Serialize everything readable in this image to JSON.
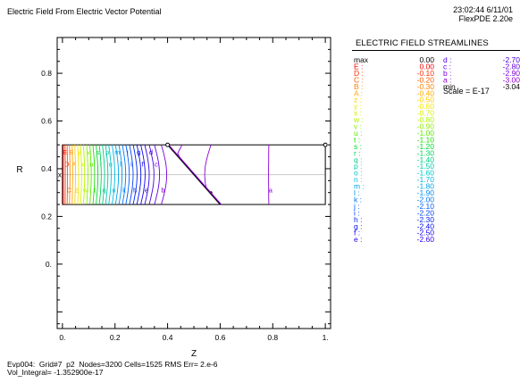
{
  "header": {
    "title": "Electric Field From Electric Vector Potential",
    "timestamp": "23:02:44 6/11/01",
    "version": "FlexPDE 2.20e"
  },
  "legend": {
    "title": "ELECTRIC FIELD STREAMLINES",
    "col1": [
      {
        "key": "max",
        "value": "0.00",
        "color": "#000000"
      },
      {
        "key": "E :",
        "value": "0.00",
        "color": "#ff0000"
      },
      {
        "key": "D :",
        "value": "-0.10",
        "color": "#ff2e00"
      },
      {
        "key": "C :",
        "value": "-0.20",
        "color": "#ff5a00"
      },
      {
        "key": "B :",
        "value": "-0.30",
        "color": "#ff8300"
      },
      {
        "key": "A :",
        "value": "-0.40",
        "color": "#ffaa00"
      },
      {
        "key": "z :",
        "value": "-0.50",
        "color": "#ffcd00"
      },
      {
        "key": "y :",
        "value": "-0.60",
        "color": "#f4e800"
      },
      {
        "key": "x :",
        "value": "-0.70",
        "color": "#d6f200"
      },
      {
        "key": "w :",
        "value": "-0.80",
        "color": "#b4f500"
      },
      {
        "key": "v :",
        "value": "-0.90",
        "color": "#8cf000"
      },
      {
        "key": "u :",
        "value": "-1.00",
        "color": "#5ae800"
      },
      {
        "key": "t :",
        "value": "-1.10",
        "color": "#1ee000"
      },
      {
        "key": "s :",
        "value": "-1.20",
        "color": "#00d82a"
      },
      {
        "key": "r :",
        "value": "-1.30",
        "color": "#00d25a"
      },
      {
        "key": "q :",
        "value": "-1.40",
        "color": "#00cc88"
      },
      {
        "key": "p :",
        "value": "-1.50",
        "color": "#00c8ae"
      },
      {
        "key": "o :",
        "value": "-1.60",
        "color": "#00c4cc"
      },
      {
        "key": "n :",
        "value": "-1.70",
        "color": "#00b8e0"
      },
      {
        "key": "m :",
        "value": "-1.80",
        "color": "#00a6ec"
      },
      {
        "key": "l :",
        "value": "-1.90",
        "color": "#0090f4"
      },
      {
        "key": "k :",
        "value": "-2.00",
        "color": "#0078f8"
      },
      {
        "key": "j :",
        "value": "-2.10",
        "color": "#005ef8"
      },
      {
        "key": "i :",
        "value": "-2.20",
        "color": "#0042f8"
      },
      {
        "key": "h :",
        "value": "-2.30",
        "color": "#0026f4"
      },
      {
        "key": "g :",
        "value": "-2.40",
        "color": "#000cf0"
      },
      {
        "key": "f :",
        "value": "-2.50",
        "color": "#1400ec"
      },
      {
        "key": "e :",
        "value": "-2.60",
        "color": "#2e00e8"
      }
    ],
    "col2": [
      {
        "key": "d :",
        "value": "-2.70",
        "color": "#4800e4"
      },
      {
        "key": "c :",
        "value": "-2.80",
        "color": "#6200e0"
      },
      {
        "key": "b :",
        "value": "-2.90",
        "color": "#7800dc"
      },
      {
        "key": "a :",
        "value": "-3.00",
        "color": "#8c00d8"
      },
      {
        "key": "min",
        "value": "-3.04",
        "color": "#000000"
      }
    ],
    "scale": "Scale = E-17"
  },
  "footer": {
    "line1": "Evp004:  Grid#7  p2  Nodes=3200 Cells=1525 RMS Err= 2.e-6",
    "line2": "Vol_Integral= -1.352900e-17"
  },
  "chart_data": {
    "type": "contour",
    "title": "ELECTRIC FIELD STREAMLINES",
    "xlabel": "Z",
    "ylabel": "R",
    "xlim": [
      -0.02,
      1.02
    ],
    "ylim": [
      -0.27,
      0.95
    ],
    "x_ticks": [
      "0.",
      "0.2",
      "0.4",
      "0.6",
      "0.8",
      "1."
    ],
    "x_tick_values": [
      0,
      0.2,
      0.4,
      0.6,
      0.8,
      1.0
    ],
    "y_ticks": [
      "0.",
      "0.2",
      "0.4",
      "0.6",
      "0.8"
    ],
    "y_tick_values": [
      0,
      0.2,
      0.4,
      0.6,
      0.8
    ],
    "regions": {
      "rectangle": {
        "z": [
          0,
          1.0
        ],
        "r": [
          0.25,
          0.5
        ]
      },
      "wedge": {
        "z_top": 0.4,
        "z_bottom": 0.6
      },
      "centerline_r": 0.375
    },
    "streamlines": [
      {
        "label": "E",
        "z": 0.003,
        "color": "#ff0000"
      },
      {
        "label": "D",
        "z": 0.01,
        "color": "#ff2e00"
      },
      {
        "label": "C",
        "z": 0.018,
        "color": "#ff5a00"
      },
      {
        "label": "B",
        "z": 0.027,
        "color": "#ff8300"
      },
      {
        "label": "A",
        "z": 0.037,
        "color": "#ffaa00"
      },
      {
        "label": "z",
        "z": 0.047,
        "color": "#ffcd00"
      },
      {
        "label": "y",
        "z": 0.058,
        "color": "#f4e800"
      },
      {
        "label": "x",
        "z": 0.069,
        "color": "#d6f200"
      },
      {
        "label": "w",
        "z": 0.08,
        "color": "#b4f500"
      },
      {
        "label": "v",
        "z": 0.092,
        "color": "#8cf000"
      },
      {
        "label": "u",
        "z": 0.104,
        "color": "#5ae800"
      },
      {
        "label": "t",
        "z": 0.116,
        "color": "#1ee000"
      },
      {
        "label": "s",
        "z": 0.128,
        "color": "#00d82a"
      },
      {
        "label": "r",
        "z": 0.14,
        "color": "#00d25a"
      },
      {
        "label": "q",
        "z": 0.152,
        "color": "#00cc88"
      },
      {
        "label": "p",
        "z": 0.164,
        "color": "#00c8ae"
      },
      {
        "label": "o",
        "z": 0.176,
        "color": "#00c4cc"
      },
      {
        "label": "n",
        "z": 0.189,
        "color": "#00b8e0"
      },
      {
        "label": "m",
        "z": 0.202,
        "color": "#00a6ec"
      },
      {
        "label": "l",
        "z": 0.215,
        "color": "#0090f4"
      },
      {
        "label": "k",
        "z": 0.228,
        "color": "#0078f8"
      },
      {
        "label": "j",
        "z": 0.241,
        "color": "#005ef8"
      },
      {
        "label": "i",
        "z": 0.255,
        "color": "#0042f8"
      },
      {
        "label": "h",
        "z": 0.269,
        "color": "#0026f4"
      },
      {
        "label": "g",
        "z": 0.283,
        "color": "#000cf0"
      },
      {
        "label": "f",
        "z": 0.298,
        "color": "#1400ec"
      },
      {
        "label": "e",
        "z": 0.313,
        "color": "#2e00e8"
      },
      {
        "label": "d",
        "z": 0.33,
        "color": "#4800e4"
      },
      {
        "label": "c",
        "z": 0.35,
        "color": "#6200e0"
      },
      {
        "label": "b",
        "z": 0.376,
        "color": "#7800dc"
      },
      {
        "label": "",
        "z": 0.405,
        "color": "#8c00d8"
      },
      {
        "label": "",
        "z": 0.455,
        "color": "#8c00d8"
      },
      {
        "label": "",
        "z": 0.565,
        "color": "#8c00d8"
      },
      {
        "label": "a",
        "z": 0.785,
        "color": "#8c00d8"
      }
    ]
  }
}
